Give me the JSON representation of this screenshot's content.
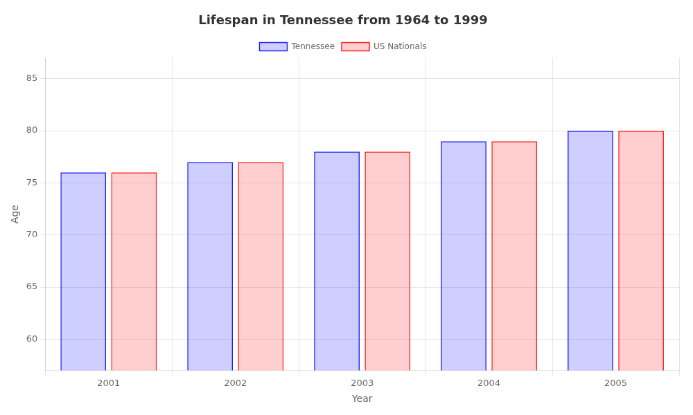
{
  "chart_data": {
    "type": "bar",
    "title": "Lifespan in Tennessee from 1964 to 1999",
    "xlabel": "Year",
    "ylabel": "Age",
    "categories": [
      "2001",
      "2002",
      "2003",
      "2004",
      "2005"
    ],
    "series": [
      {
        "name": "Tennessee",
        "color": "#2222ff",
        "values": [
          76,
          77,
          78,
          79,
          80
        ]
      },
      {
        "name": "US Nationals",
        "color": "#ff2222",
        "values": [
          76,
          77,
          78,
          79,
          80
        ]
      }
    ],
    "ylim": [
      57,
      87
    ],
    "yticks": [
      60,
      65,
      70,
      75,
      80,
      85
    ],
    "grid": true,
    "legend": "top"
  }
}
